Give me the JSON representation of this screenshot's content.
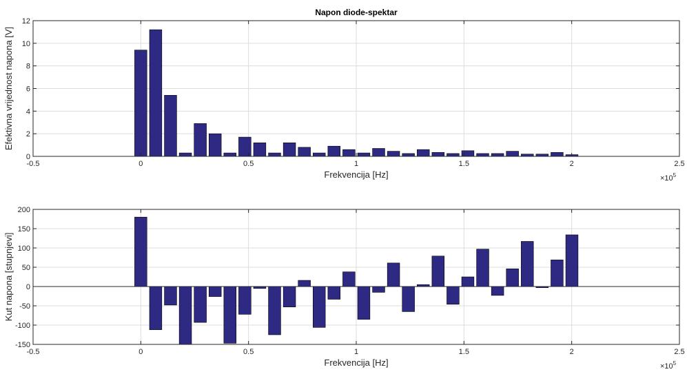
{
  "colors": {
    "bar_fill": "#2e2a84",
    "bar_edge": "#000000",
    "grid": "#dcdcdc",
    "axes": "#262626",
    "background": "#ffffff"
  },
  "chart_data": [
    {
      "type": "bar",
      "title": "Napon diode-spektar",
      "xlabel": "Frekvencija [Hz]",
      "ylabel": "Efektivna vrijednost napona [V]",
      "x_exponent_label": "×10",
      "x_exponent_power": "5",
      "xlim": [
        -0.5,
        2.5
      ],
      "ylim": [
        0,
        12
      ],
      "grid": true,
      "x_ticks": [
        -0.5,
        0,
        0.5,
        1,
        1.5,
        2,
        2.5
      ],
      "x_tick_labels": [
        "-0.5",
        "0",
        "0.5",
        "1",
        "1.5",
        "2",
        "2.5"
      ],
      "y_ticks": [
        0,
        2,
        4,
        6,
        8,
        10,
        12
      ],
      "y_tick_labels": [
        "0",
        "2",
        "4",
        "6",
        "8",
        "10",
        "12"
      ],
      "x": [
        0.0,
        0.069,
        0.138,
        0.207,
        0.276,
        0.345,
        0.414,
        0.483,
        0.552,
        0.621,
        0.69,
        0.759,
        0.828,
        0.897,
        0.966,
        1.035,
        1.104,
        1.173,
        1.242,
        1.311,
        1.38,
        1.449,
        1.518,
        1.587,
        1.656,
        1.725,
        1.794,
        1.863,
        1.932,
        2.001
      ],
      "values": [
        9.4,
        11.2,
        5.4,
        0.3,
        2.9,
        2.0,
        0.3,
        1.7,
        1.2,
        0.3,
        1.2,
        0.8,
        0.3,
        0.9,
        0.6,
        0.3,
        0.7,
        0.45,
        0.25,
        0.6,
        0.35,
        0.25,
        0.5,
        0.25,
        0.25,
        0.45,
        0.2,
        0.2,
        0.35,
        0.15
      ]
    },
    {
      "type": "bar",
      "title": "",
      "xlabel": "Frekvencija [Hz]",
      "ylabel": "Kut napona [stupnjevi]",
      "x_exponent_label": "×10",
      "x_exponent_power": "5",
      "xlim": [
        -0.5,
        2.5
      ],
      "ylim": [
        -150,
        200
      ],
      "grid": true,
      "x_ticks": [
        -0.5,
        0,
        0.5,
        1,
        1.5,
        2,
        2.5
      ],
      "x_tick_labels": [
        "-0.5",
        "0",
        "0.5",
        "1",
        "1.5",
        "2",
        "2.5"
      ],
      "y_ticks": [
        -150,
        -100,
        -50,
        0,
        50,
        100,
        150,
        200
      ],
      "y_tick_labels": [
        "-150",
        "-100",
        "-50",
        "0",
        "50",
        "100",
        "150",
        "200"
      ],
      "x": [
        0.0,
        0.069,
        0.138,
        0.207,
        0.276,
        0.345,
        0.414,
        0.483,
        0.552,
        0.621,
        0.69,
        0.759,
        0.828,
        0.897,
        0.966,
        1.035,
        1.104,
        1.173,
        1.242,
        1.311,
        1.38,
        1.449,
        1.518,
        1.587,
        1.656,
        1.725,
        1.794,
        1.863,
        1.932,
        2.001
      ],
      "values": [
        180,
        -112,
        -48,
        -150,
        -93,
        -26,
        -147,
        -72,
        -5,
        -125,
        -53,
        16,
        -106,
        -33,
        38,
        -85,
        -15,
        61,
        -65,
        5,
        79,
        -46,
        25,
        97,
        -23,
        46,
        117,
        -3,
        69,
        134
      ]
    }
  ]
}
